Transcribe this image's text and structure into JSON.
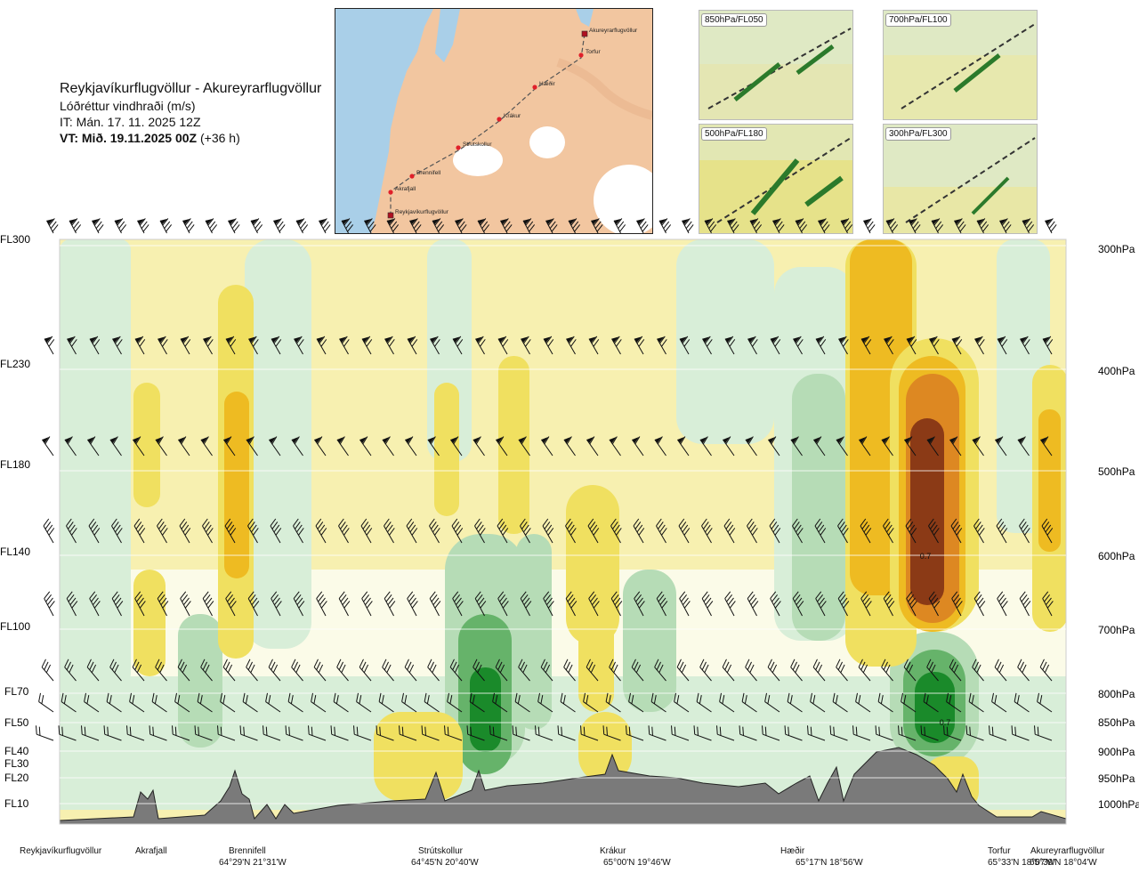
{
  "header": {
    "title": "Reykjavíkurflugvöllur - Akureyrarflugvöllur",
    "subtitle": "Lóðréttur vindhraði (m/s)",
    "issue_time": "IT: Mán. 17. 11. 2025 12Z",
    "valid_prefix": "VT: Mið. 19.11.2025 00Z",
    "valid_suffix": " (+36 h)"
  },
  "map": {
    "points": [
      {
        "name": "Akureyrarflugvöllur",
        "kind": "airport"
      },
      {
        "name": "Torfur",
        "kind": "point"
      },
      {
        "name": "Hæðir",
        "kind": "point"
      },
      {
        "name": "Krákur",
        "kind": "point"
      },
      {
        "name": "Strútskollur",
        "kind": "point"
      },
      {
        "name": "Brennifell",
        "kind": "point"
      },
      {
        "name": "Akrafjall",
        "kind": "point"
      },
      {
        "name": "Reykjavíkurflugvöllur",
        "kind": "airport"
      }
    ],
    "colors": {
      "sea": "#a9cfe8",
      "land": "#f2c6a0",
      "glacier": "#ffffff",
      "route": "#555555",
      "point": "#e0202a"
    }
  },
  "mini_maps": [
    {
      "label": "850hPa/FL050"
    },
    {
      "label": "700hPa/FL100"
    },
    {
      "label": "500hPa/FL180"
    },
    {
      "label": "300hPa/FL300"
    }
  ],
  "chart_data": {
    "type": "heatmap",
    "title": "Lóðréttur vindhraði (m/s)",
    "x_axis": "route distance Reykjavíkurflugvöllur → Akureyrarflugvöllur",
    "y_axis": "pressure level",
    "y_left_labels": [
      "FL300",
      "FL230",
      "FL180",
      "FL140",
      "FL100",
      "FL70",
      "FL50",
      "FL40",
      "FL30",
      "FL20",
      "FL10"
    ],
    "y_right_labels": [
      "300hPa",
      "400hPa",
      "500hPa",
      "600hPa",
      "700hPa",
      "800hPa",
      "850hPa",
      "900hPa",
      "950hPa",
      "1000hPa"
    ],
    "stations": [
      {
        "name": "Reykjavíkurflugvöllur",
        "coord": ""
      },
      {
        "name": "Akrafjall",
        "coord": ""
      },
      {
        "name": "Brennifell",
        "coord": "64°29'N 21°31'W"
      },
      {
        "name": "Strútskollur",
        "coord": "64°45'N 20°40'W"
      },
      {
        "name": "Krákur",
        "coord": "65°00'N 19°46'W"
      },
      {
        "name": "Hæðir",
        "coord": "65°17'N 18°56'W"
      },
      {
        "name": "Torfur",
        "coord": "65°33'N 18°07'W"
      },
      {
        "name": "Akureyrarflugvöllur",
        "coord": "65°39'N 18°04'W"
      }
    ],
    "annotations": [
      {
        "text": "0.7",
        "level": "600hPa",
        "near": "Torfur"
      },
      {
        "text": "0.7",
        "level": "850hPa",
        "near": "Torfur"
      }
    ],
    "field_colors": {
      "strong_down": "#1a8a2a",
      "down": "#66b36a",
      "weak_down": "#b6dcb6",
      "faint_down": "#d8eed8",
      "neutral": "#fbfbe8",
      "faint_up": "#f7f0b0",
      "weak_up": "#f0e060",
      "up": "#eebb22",
      "strong_up": "#dd8822",
      "max_up": "#8b3a16",
      "terrain": "#7a7a7a"
    }
  }
}
